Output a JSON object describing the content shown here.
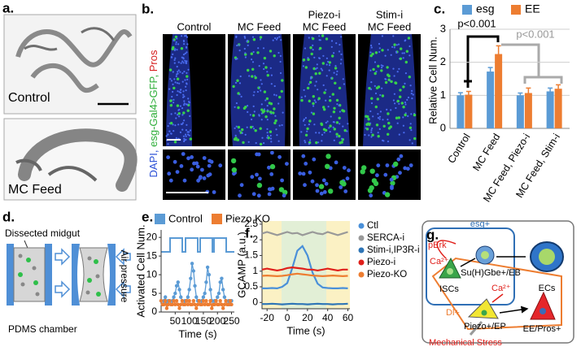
{
  "panel_labels": [
    "a.",
    "b.",
    "c.",
    "d.",
    "e.",
    "f.",
    "g."
  ],
  "panel_a": {
    "captions": [
      "Control",
      "MC Feed"
    ]
  },
  "panel_b": {
    "columns": [
      [
        "Control"
      ],
      [
        "MC Feed"
      ],
      [
        "Piezo-i",
        "MC Feed"
      ],
      [
        "Stim-i",
        "MC Feed"
      ]
    ],
    "stain_label": [
      "DAPI,",
      "esg-Gal4>GFP,",
      "Pros"
    ]
  },
  "panel_d": {
    "labels": [
      "Dissected midgut",
      "Air pressure",
      "PDMS chamber"
    ]
  },
  "panel_g": {
    "labels": [
      "esg+",
      "pErk",
      "Ca²⁺",
      "Su(H)Gbe+/EB",
      "ECs",
      "ISCs",
      "Ca²⁺",
      "Dl+",
      "Piezo+/EP",
      "EE/Pros+",
      "Mechanical Stress"
    ]
  },
  "chart_data": [
    {
      "type": "bar",
      "y_label": "Relative Cell Num.",
      "categories": [
        "Control",
        "MC Feed",
        "MC Feed, Piezo-i",
        "MC Feed, Stim-i"
      ],
      "series": [
        {
          "name": "esg",
          "color": "#5b9bd5",
          "values": [
            1.0,
            1.72,
            1.0,
            1.12
          ],
          "errors": [
            0.08,
            0.12,
            0.07,
            0.1
          ]
        },
        {
          "name": "EE",
          "color": "#ed7d31",
          "values": [
            1.02,
            2.25,
            1.07,
            1.2
          ],
          "errors": [
            0.1,
            0.25,
            0.15,
            0.12
          ]
        }
      ],
      "ylim": [
        0,
        3
      ],
      "yticks": [
        0,
        1,
        2,
        3
      ],
      "grid": true,
      "legend": "top",
      "annotations": [
        "p<0.001",
        "p<0.001"
      ]
    },
    {
      "type": "line",
      "x_label": "Time (s)",
      "y_label": "Activated Cell Num.",
      "x": [
        0,
        5,
        10,
        15,
        20,
        25,
        30,
        35,
        40,
        45,
        50,
        55,
        60,
        65,
        70,
        75,
        80,
        85,
        90,
        95,
        100,
        105,
        110,
        115,
        120,
        125,
        130,
        135,
        140,
        145,
        150,
        155,
        160,
        165,
        170,
        175,
        180,
        185,
        190,
        195,
        200,
        205,
        210,
        215,
        220,
        225,
        230,
        235,
        240,
        245,
        250
      ],
      "series": [
        {
          "name": "Control",
          "color": "#5b9bd5",
          "values": [
            3,
            2,
            3,
            4,
            2,
            3,
            3,
            2,
            3,
            4,
            5,
            7,
            8,
            6,
            4,
            3,
            2,
            3,
            3,
            4,
            6,
            9,
            13,
            11,
            7,
            4,
            3,
            3,
            2,
            3,
            4,
            5,
            8,
            12,
            10,
            6,
            3,
            2,
            3,
            3,
            4,
            5,
            8,
            9,
            6,
            4,
            3,
            2,
            3,
            2,
            3
          ]
        },
        {
          "name": "Piezo KO",
          "color": "#ed7d31",
          "values": [
            3,
            2,
            2,
            3,
            1,
            2,
            3,
            2,
            2,
            3,
            2,
            3,
            2,
            1,
            2,
            3,
            2,
            2,
            3,
            2,
            3,
            2,
            2,
            3,
            2,
            1,
            2,
            3,
            2,
            2,
            3,
            2,
            3,
            2,
            2,
            3,
            1,
            2,
            2,
            3,
            2,
            2,
            3,
            2,
            1,
            2,
            3,
            2,
            2,
            3,
            2
          ]
        }
      ],
      "xlim": [
        0,
        260
      ],
      "xticks": [
        50,
        100,
        150,
        200,
        250
      ],
      "ylim": [
        0,
        22
      ],
      "yticks": [
        0,
        5,
        10,
        15,
        20
      ],
      "markers": true,
      "legend": "top"
    },
    {
      "type": "line",
      "x_label": "Time (s)",
      "y_label": "GCAMP (a.u.)",
      "x": [
        -25,
        -20,
        -15,
        -10,
        -5,
        0,
        5,
        10,
        15,
        20,
        25,
        30,
        35,
        40,
        45,
        50,
        55,
        60
      ],
      "series": [
        {
          "name": "Ctl",
          "color": "#4a90d9",
          "values": [
            0.45,
            0.45,
            0.46,
            0.45,
            0.5,
            0.62,
            1.1,
            1.65,
            1.8,
            1.5,
            0.95,
            0.6,
            0.48,
            0.46,
            0.45,
            0.45,
            0.46,
            0.45
          ]
        },
        {
          "name": "SERCA-i",
          "color": "#999999",
          "values": [
            2.2,
            2.25,
            2.2,
            2.15,
            2.2,
            2.25,
            2.2,
            2.22,
            2.15,
            2.2,
            2.25,
            2.2,
            2.18,
            2.25,
            2.2,
            2.15,
            2.2,
            2.25
          ]
        },
        {
          "name": "Stim-i,IP3R-i",
          "color": "#2e75b6",
          "values": [
            -0.05,
            -0.05,
            -0.04,
            -0.05,
            -0.06,
            -0.05,
            -0.04,
            -0.05,
            -0.05,
            -0.06,
            -0.05,
            -0.04,
            -0.05,
            -0.05,
            -0.06,
            -0.05,
            -0.05,
            -0.04
          ]
        },
        {
          "name": "Piezo-i",
          "color": "#e0201b",
          "values": [
            1.05,
            1.08,
            1.05,
            1.02,
            1.05,
            1.1,
            1.12,
            1.1,
            1.08,
            1.05,
            1.05,
            1.02,
            1.05,
            1.08,
            1.05,
            1.02,
            1.05,
            1.05
          ]
        },
        {
          "name": "Piezo-KO",
          "color": "#ed7d31",
          "values": [
            0.85,
            0.86,
            0.85,
            0.84,
            0.85,
            0.87,
            0.9,
            0.92,
            0.9,
            0.88,
            0.86,
            0.85,
            0.84,
            0.85,
            0.86,
            0.85,
            0.84,
            0.85
          ]
        }
      ],
      "xlim": [
        -25,
        62
      ],
      "xticks": [
        -20,
        0,
        20,
        40,
        60
      ],
      "ylim": [
        -0.2,
        2.6
      ],
      "yticks": [
        0,
        0.5,
        1,
        1.5,
        2,
        2.5
      ],
      "markers": false,
      "legend": "right"
    }
  ]
}
